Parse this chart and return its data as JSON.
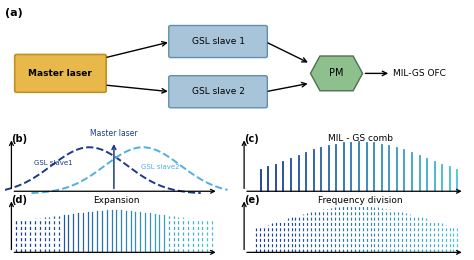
{
  "title_a": "(a)",
  "title_b": "(b)",
  "title_c": "(c)",
  "title_d": "(d)",
  "title_e": "(e)",
  "label_master": "Master laser",
  "label_gsl1": "GSL slave 1",
  "label_gsl2": "GSL slave 2",
  "label_pm": "PM",
  "label_milgs": "MIL-GS OFC",
  "label_b_master": "Master laser",
  "label_b_gsl1": "GSL slave1",
  "label_b_gsl2": "GSL slave2",
  "label_c": "MIL - GS comb",
  "label_d": "Expansion",
  "label_e": "Frequency division",
  "color_master_box": "#E8B84B",
  "color_master_edge": "#C09020",
  "color_gsl_box": "#A8C4D8",
  "color_gsl_edge": "#6090B0",
  "color_pm_box": "#8DC08D",
  "color_pm_edge": "#507050",
  "color_dark_blue": "#1A3A8A",
  "color_light_blue": "#50B0E0",
  "bg_color": "#FFFFFF"
}
